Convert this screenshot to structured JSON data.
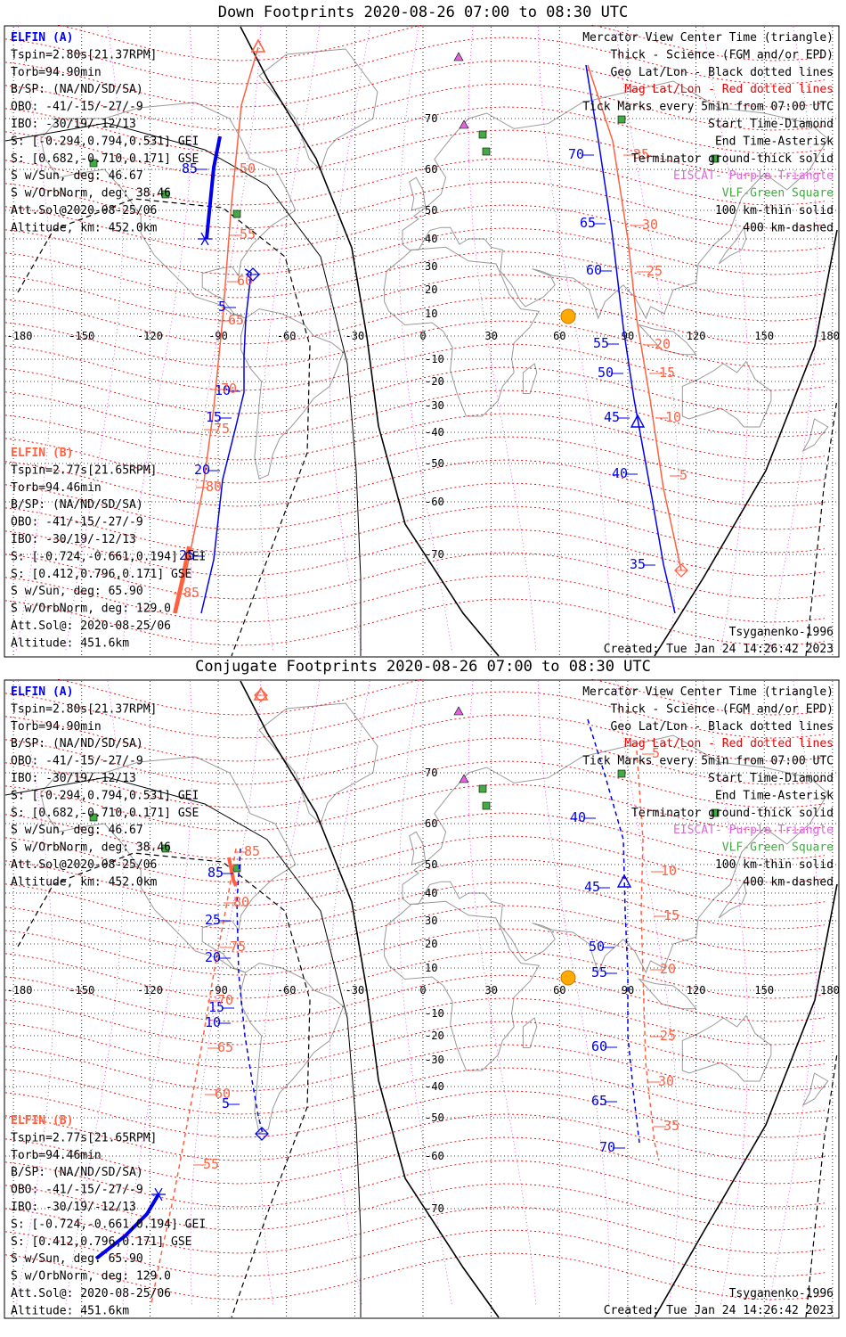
{
  "panels": [
    {
      "id": "down",
      "title": "Down Footprints 2020-08-26 07:00 to 08:30 UTC",
      "elfin_a": {
        "name": "ELFIN (A)",
        "lines": [
          "Tspin=2.80s[21.37RPM]",
          "Torb=94.90min",
          "B/SP: (NA/ND/SD/SA)",
          "OBO: -41/-15/-27/-9",
          "IBO: -30/19/-12/13",
          "S: [-0.294,0.794,0.531] GEI",
          "S: [0.682,-0.710,0.171] GSE",
          "S w/Sun, deg: 46.67",
          "S w/OrbNorm, deg: 38.46",
          "Att.Sol@2020-08-25/06",
          "Altitude, km: 452.0km"
        ]
      },
      "elfin_b": {
        "name": "ELFIN (B)",
        "lines": [
          "Tspin=2.77s[21.65RPM]",
          "Torb=94.46min",
          "B/SP: (NA/ND/SD/SA)",
          "OBO: -41/-15/-27/-9",
          "IBO: -30/19/-12/13",
          "S: [-0.724,-0.661,0.194] GEI",
          "S: [0.412,0.796,0.171] GSE",
          "S w/Sun, deg: 65.90",
          "S w/OrbNorm, deg: 129.0",
          "Att.Sol@: 2020-08-25/06",
          "Altitude: 451.6km"
        ]
      },
      "legend": [
        "Mercator View Center Time (triangle)",
        "Thick - Science (FGM and/or EPD)",
        "Geo Lat/Lon - Black dotted lines",
        "Mag Lat/Lon - Red dotted lines",
        "Tick Marks every 5min from 07:00 UTC",
        "Start Time-Diamond",
        "End Time-Asterisk",
        "Terminator ground-thick solid",
        "EISCAT- Purple Triangle",
        "VLF-Green Square",
        "100 km-thin solid",
        "400 km-dashed"
      ],
      "model": "Tsyganenko-1996",
      "created": "Created: Tue Jan 24 14:26:42 2023",
      "tracks": {
        "a1": {
          "label_steps": [
            "5",
            "10",
            "15",
            "20",
            "25",
            "85"
          ]
        },
        "b1": {
          "label_steps": [
            "50",
            "55",
            "60",
            "65",
            "70",
            "75",
            "80",
            "85"
          ]
        },
        "a2": {
          "label_steps": [
            "70",
            "65",
            "60",
            "55",
            "50",
            "45",
            "40",
            "35"
          ]
        },
        "b2": {
          "label_steps": [
            "35",
            "30",
            "25",
            "20",
            "15",
            "10",
            "5"
          ]
        }
      }
    },
    {
      "id": "conjugate",
      "title": "Conjugate Footprints 2020-08-26 07:00 to 08:30 UTC",
      "elfin_a": {
        "name": "ELFIN (A)",
        "lines": [
          "Tspin=2.80s[21.37RPM]",
          "Torb=94.90min",
          "B/SP: (NA/ND/SD/SA)",
          "OBO: -41/-15/-27/-9",
          "IBO: -30/19/-12/13",
          "S: [-0.294,0.794,0.531] GEI",
          "S: [0.682,-0.710,0.171] GSE",
          "S w/Sun, deg: 46.67",
          "S w/OrbNorm, deg: 38.46",
          "Att.Sol@2020-08-25/06",
          "Altitude, km: 452.0km"
        ]
      },
      "elfin_b": {
        "name": "ELFIN (B)",
        "lines": [
          "Tspin=2.77s[21.65RPM]",
          "Torb=94.46min",
          "B/SP: (NA/ND/SD/SA)",
          "OBO: -41/-15/-27/-9",
          "IBO: -30/19/-12/13",
          "S: [-0.724,-0.661,0.194] GEI",
          "S: [0.412,0.796,0.171] GSE",
          "S w/Sun, deg: 65.90",
          "S w/OrbNorm, deg: 129.0",
          "Att.Sol@: 2020-08-25/06",
          "Altitude: 451.6km"
        ]
      },
      "legend": [
        "Mercator View Center Time (triangle)",
        "Thick - Science (FGM and/or EPD)",
        "Geo Lat/Lon - Black dotted lines",
        "Mag Lat/Lon - Red dotted lines",
        "Tick Marks every 5min from 07:00 UTC",
        "Start Time-Diamond",
        "End Time-Asterisk",
        "Terminator ground-thick solid",
        "EISCAT- Purple Triangle",
        "VLF-Green Square",
        "100 km-thin solid",
        "400 km-dashed"
      ],
      "model": "Tsyganenko-1996",
      "created": "Created: Tue Jan 24 14:26:42 2023",
      "tracks": {
        "a1": {
          "label_steps": [
            "85",
            "25",
            "20",
            "15",
            "10",
            "5"
          ]
        },
        "b1": {
          "label_steps": [
            "85",
            "80",
            "75",
            "70",
            "65",
            "60",
            "55"
          ]
        },
        "a2": {
          "label_steps": [
            "40",
            "45",
            "50",
            "55",
            "60",
            "65",
            "70"
          ]
        },
        "b2": {
          "label_steps": [
            "5",
            "10",
            "15",
            "20",
            "25",
            "30",
            "35"
          ]
        }
      }
    }
  ],
  "axis_labels": {
    "longitude": [
      "-180",
      "-150",
      "-120",
      "-90",
      "-60",
      "-30",
      "0",
      "30",
      "60",
      "90",
      "120",
      "150",
      "180"
    ],
    "latitude": [
      "70",
      "60",
      "50",
      "40",
      "30",
      "20",
      "10",
      "0",
      "-10",
      "-20",
      "-30",
      "-40",
      "-50",
      "-60",
      "-70"
    ]
  },
  "colors": {
    "elfin_a": "#0000ee",
    "elfin_b": "#ff6040",
    "mag_grid": "#ee0000",
    "geo_grid": "#000000",
    "mag_meridian": "#dd44dd",
    "eiscat": "#dd66dd",
    "vlf": "#44aa44",
    "coast": "#999999",
    "sun": "#ffaa00"
  }
}
